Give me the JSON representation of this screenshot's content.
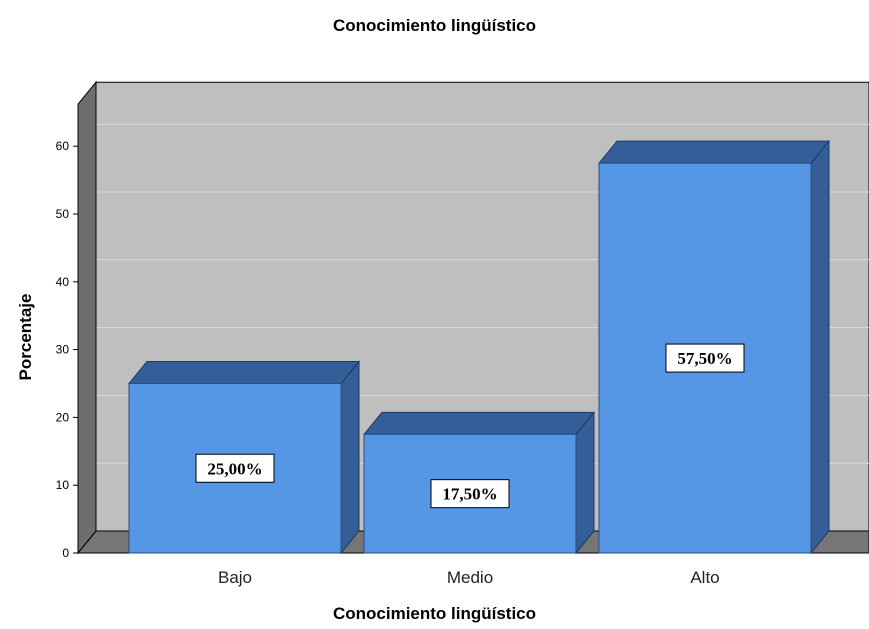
{
  "chart_data": {
    "type": "bar",
    "title": "Conocimiento lingüístico",
    "xlabel": "Conocimiento lingüístico",
    "ylabel": "Porcentaje",
    "categories": [
      "Bajo",
      "Medio",
      "Alto"
    ],
    "values": [
      25.0,
      17.5,
      57.5
    ],
    "data_labels": [
      "25,00%",
      "17,50%",
      "57,50%"
    ],
    "yticks": [
      0,
      10,
      20,
      30,
      40,
      50,
      60
    ],
    "ylim": [
      0,
      60
    ],
    "grid": true,
    "style": "3d",
    "colors": {
      "bar_front": "#5596e5",
      "bar_top": "#335e98",
      "bar_side": "#335e98",
      "plot_back": "#bfbfbf",
      "plot_floor": "#767676",
      "plot_wall": "#6e6e6e",
      "gridline": "#d9d9d9"
    }
  }
}
